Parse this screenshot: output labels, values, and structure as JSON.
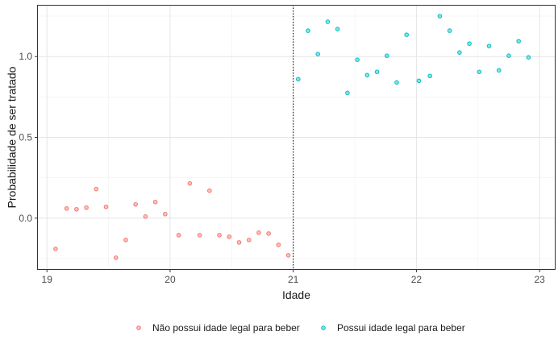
{
  "chart_data": {
    "type": "scatter",
    "title": "",
    "xlabel": "Idade",
    "ylabel": "Probabilidade de ser tratado",
    "xlim": [
      18.92,
      23.13
    ],
    "ylim": [
      -0.32,
      1.32
    ],
    "x_ticks": [
      19,
      20,
      21,
      22,
      23
    ],
    "x_tick_labels": [
      "19",
      "20",
      "21",
      "22",
      "23"
    ],
    "y_ticks": [
      0.0,
      0.5,
      1.0
    ],
    "y_tick_labels": [
      "0.0",
      "0.5",
      "1.0"
    ],
    "grid": true,
    "legend_position": "bottom",
    "cutoff": 21,
    "cutoff_style": "dotted",
    "series": [
      {
        "name": "Não possui idade legal para beber",
        "color": "#F8766D",
        "points": [
          [
            19.07,
            -0.19
          ],
          [
            19.16,
            0.06
          ],
          [
            19.24,
            0.055
          ],
          [
            19.32,
            0.065
          ],
          [
            19.4,
            0.18
          ],
          [
            19.48,
            0.07
          ],
          [
            19.56,
            -0.245
          ],
          [
            19.64,
            -0.135
          ],
          [
            19.72,
            0.085
          ],
          [
            19.8,
            0.01
          ],
          [
            19.88,
            0.1
          ],
          [
            19.96,
            0.025
          ],
          [
            20.07,
            -0.105
          ],
          [
            20.16,
            0.215
          ],
          [
            20.24,
            -0.105
          ],
          [
            20.32,
            0.17
          ],
          [
            20.4,
            -0.105
          ],
          [
            20.48,
            -0.115
          ],
          [
            20.56,
            -0.15
          ],
          [
            20.64,
            -0.135
          ],
          [
            20.72,
            -0.09
          ],
          [
            20.8,
            -0.095
          ],
          [
            20.88,
            -0.165
          ],
          [
            20.96,
            -0.23
          ]
        ]
      },
      {
        "name": "Possui idade legal para beber",
        "color": "#00BFC4",
        "points": [
          [
            21.04,
            0.86
          ],
          [
            21.12,
            1.16
          ],
          [
            21.2,
            1.015
          ],
          [
            21.28,
            1.215
          ],
          [
            21.36,
            1.17
          ],
          [
            21.44,
            0.775
          ],
          [
            21.52,
            0.98
          ],
          [
            21.6,
            0.885
          ],
          [
            21.68,
            0.905
          ],
          [
            21.76,
            1.005
          ],
          [
            21.84,
            0.84
          ],
          [
            21.92,
            1.135
          ],
          [
            22.02,
            0.85
          ],
          [
            22.11,
            0.88
          ],
          [
            22.19,
            1.25
          ],
          [
            22.27,
            1.16
          ],
          [
            22.35,
            1.025
          ],
          [
            22.43,
            1.08
          ],
          [
            22.51,
            0.905
          ],
          [
            22.59,
            1.065
          ],
          [
            22.67,
            0.915
          ],
          [
            22.75,
            1.005
          ],
          [
            22.83,
            1.095
          ],
          [
            22.91,
            0.995
          ]
        ]
      }
    ]
  }
}
